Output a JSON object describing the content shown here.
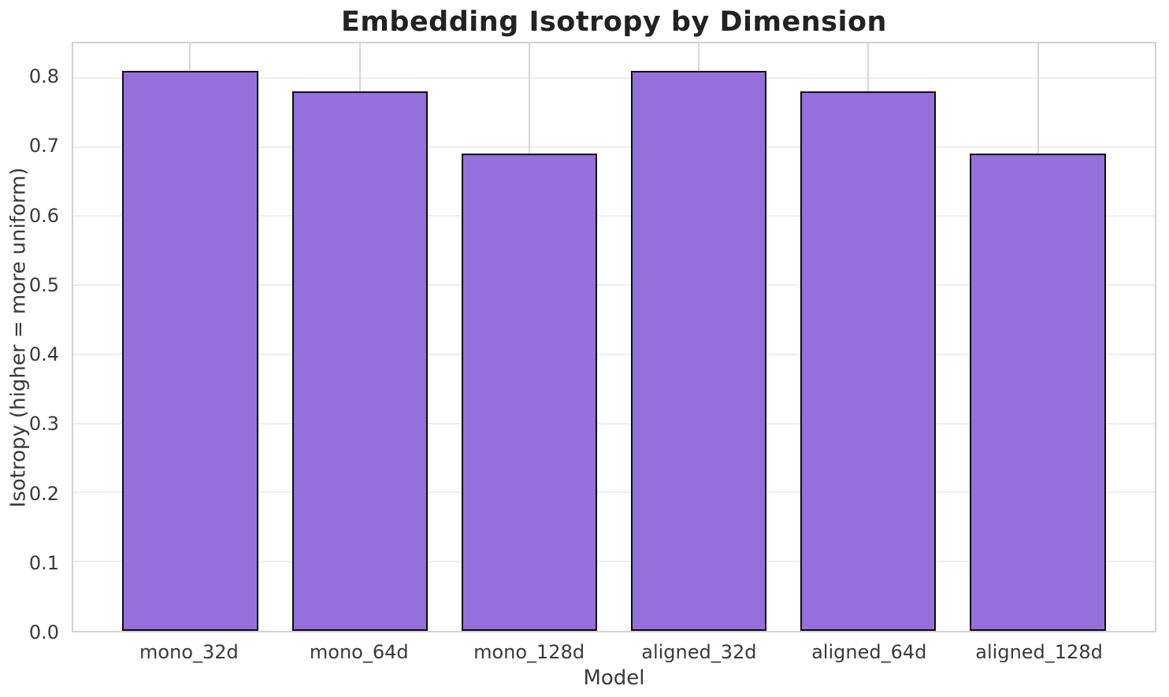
{
  "chart_data": {
    "type": "bar",
    "title": "Embedding Isotropy by Dimension",
    "xlabel": "Model",
    "ylabel": "Isotropy (higher = more uniform)",
    "categories": [
      "mono_32d",
      "mono_64d",
      "mono_128d",
      "aligned_32d",
      "aligned_64d",
      "aligned_128d"
    ],
    "values": [
      0.81,
      0.78,
      0.69,
      0.81,
      0.78,
      0.69
    ],
    "ylim": [
      0,
      0.85
    ],
    "yticks": [
      0.0,
      0.1,
      0.2,
      0.3,
      0.4,
      0.5,
      0.6,
      0.7,
      0.8
    ],
    "grid": true,
    "legend_position": "none",
    "colors": {
      "bar_fill": "#9370DB",
      "bar_edge": "#0d0d0d",
      "grid_horizontal": "#efefef",
      "grid_vertical": "#d6d6d6",
      "frame": "#d2d2d2",
      "title_text": "#222222",
      "tick_text": "#3a3a3a"
    }
  }
}
